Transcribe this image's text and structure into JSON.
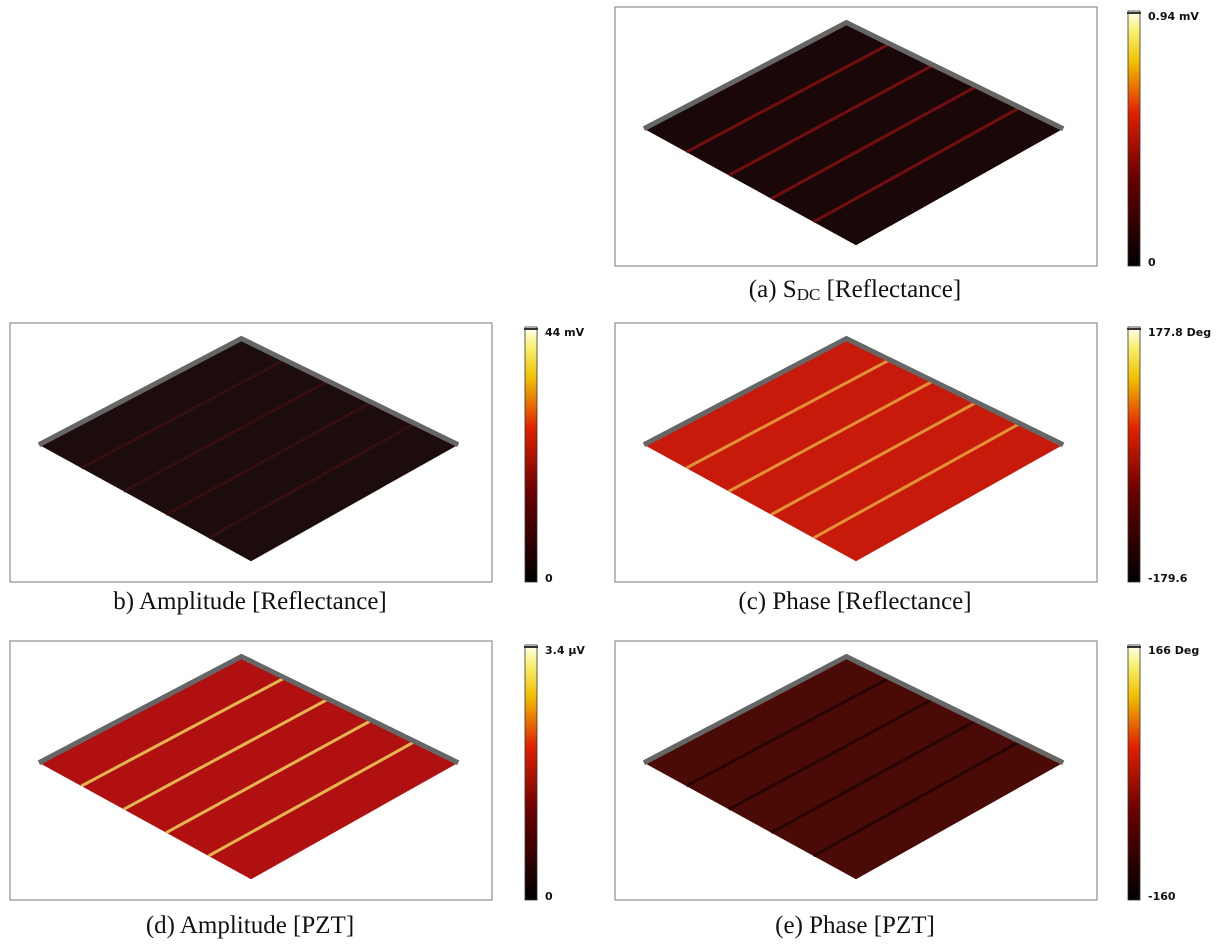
{
  "panels": [
    {
      "caption": {
        "prefix": "(a) S",
        "subscript": "DC",
        "suffix": " [Reflectance]"
      },
      "colorbar": {
        "max": "0.94 mV",
        "min": "0"
      }
    },
    {
      "caption": {
        "prefix": "b) Amplitude [Reflectance]"
      },
      "colorbar": {
        "max": "44 mV",
        "min": "0"
      }
    },
    {
      "caption": {
        "prefix": "(c) Phase [Reflectance]"
      },
      "colorbar": {
        "max": "177.8 Deg",
        "min": "-179.6"
      }
    },
    {
      "caption": {
        "prefix": "(d) Amplitude [PZT]"
      },
      "colorbar": {
        "max": "3.4 µV",
        "min": "0"
      }
    },
    {
      "caption": {
        "prefix": "(e) Phase [PZT]"
      },
      "colorbar": {
        "max": "166 Deg",
        "min": "-160"
      }
    }
  ]
}
